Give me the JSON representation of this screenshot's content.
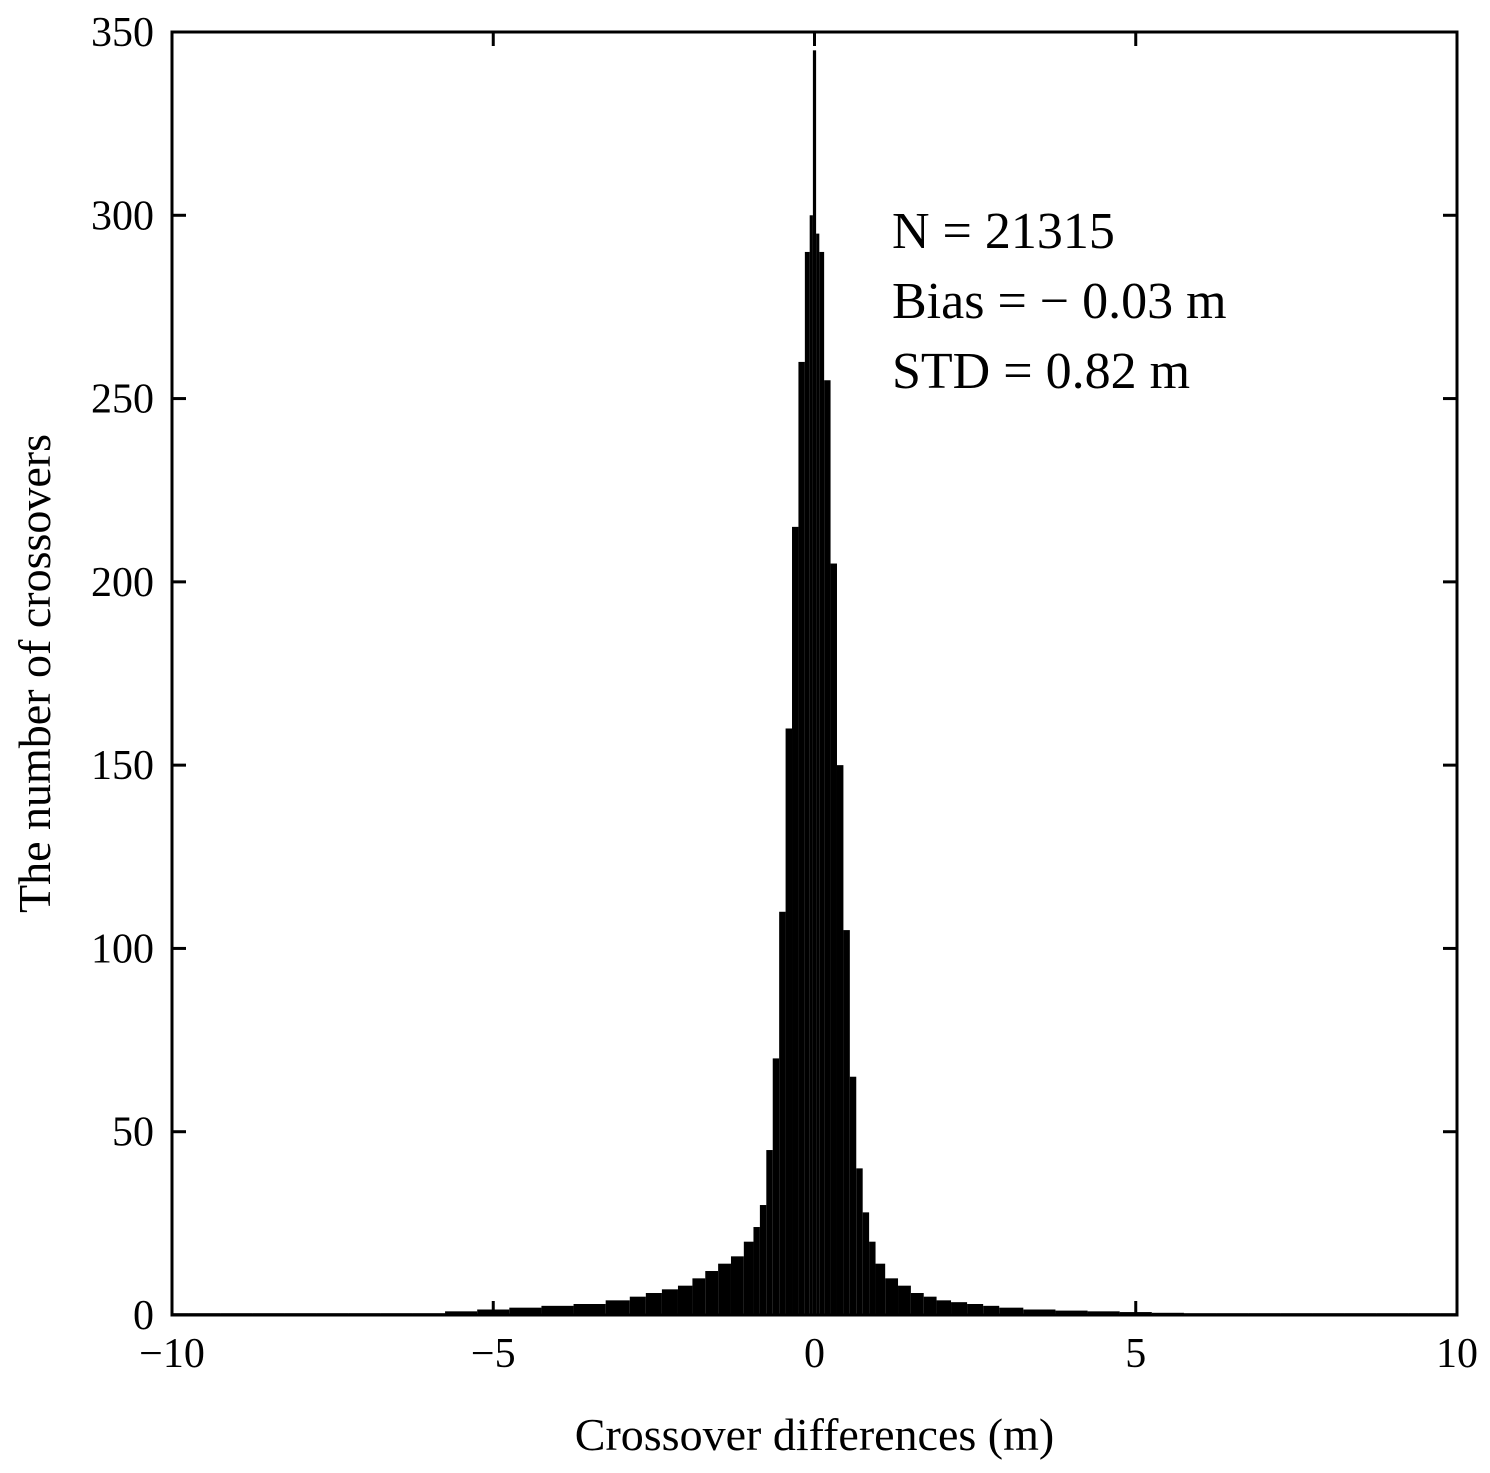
{
  "chart_data": {
    "type": "bar",
    "title": "",
    "xlabel": "Crossover differences (m)",
    "ylabel": "The number of crossovers",
    "xlim": [
      -10,
      10
    ],
    "ylim": [
      0,
      350
    ],
    "xticks": [
      -10,
      -5,
      0,
      5,
      10
    ],
    "xtick_labels": [
      "−10",
      "−5",
      "0",
      "5",
      "10"
    ],
    "yticks": [
      0,
      50,
      100,
      150,
      200,
      250,
      300,
      350
    ],
    "ytick_labels": [
      "0",
      "50",
      "100",
      "150",
      "200",
      "250",
      "300",
      "350"
    ],
    "grid": false,
    "bar_color": "#000000",
    "annotations": [
      "N = 21315",
      "Bias = − 0.03 m",
      "STD = 0.82 m"
    ],
    "x": [
      -10.0,
      -9.5,
      -9.0,
      -8.5,
      -8.0,
      -7.5,
      -7.0,
      -6.5,
      -6.0,
      -5.5,
      -5.0,
      -4.5,
      -4.0,
      -3.5,
      -3.0,
      -2.75,
      -2.5,
      -2.25,
      -2.0,
      -1.8,
      -1.6,
      -1.4,
      -1.2,
      -1.0,
      -0.9,
      -0.8,
      -0.7,
      -0.6,
      -0.5,
      -0.4,
      -0.3,
      -0.2,
      -0.1,
      -0.05,
      0.0,
      0.05,
      0.1,
      0.2,
      0.3,
      0.4,
      0.5,
      0.6,
      0.7,
      0.8,
      0.9,
      1.0,
      1.2,
      1.4,
      1.6,
      1.8,
      2.0,
      2.25,
      2.5,
      2.75,
      3.0,
      3.5,
      4.0,
      4.5,
      5.0,
      5.5,
      6.0,
      6.5,
      7.0,
      7.5,
      8.0,
      8.5,
      9.0,
      9.5,
      10.0
    ],
    "values": [
      0.5,
      0.5,
      0.5,
      0.5,
      0.5,
      0.5,
      0.5,
      0.5,
      0.5,
      1,
      1.5,
      2,
      2.5,
      3,
      4,
      5,
      6,
      7,
      8,
      10,
      12,
      14,
      16,
      20,
      24,
      30,
      45,
      70,
      110,
      160,
      215,
      260,
      290,
      300,
      345,
      295,
      290,
      255,
      205,
      150,
      105,
      65,
      40,
      28,
      20,
      14,
      10,
      8,
      6,
      5,
      4,
      3.5,
      3,
      2.5,
      2,
      1.5,
      1.2,
      1,
      0.8,
      0.6,
      0.5,
      0.5,
      0.5,
      0.5,
      0.5,
      0.5,
      0.5,
      0.5,
      0.5
    ]
  }
}
